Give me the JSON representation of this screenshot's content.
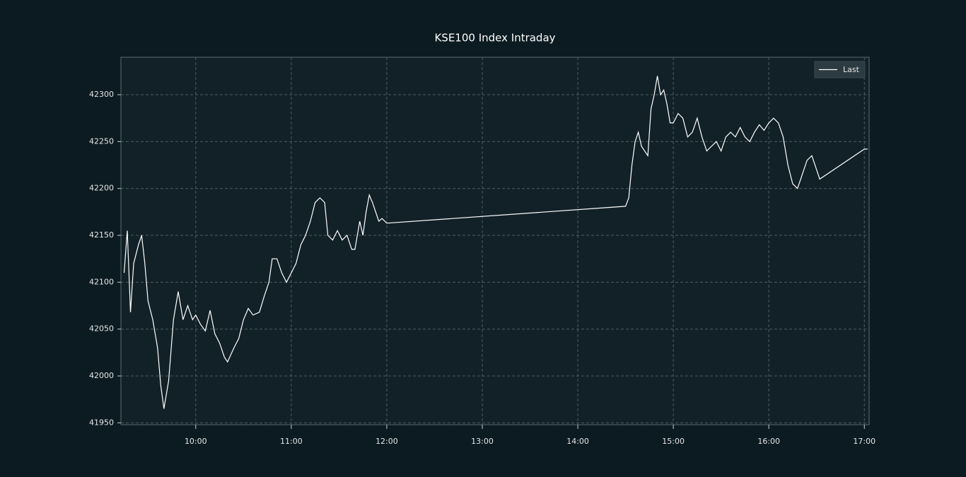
{
  "chart_data": {
    "type": "line",
    "title": "KSE100 Index Intraday",
    "x": [
      "09:15",
      "09:17",
      "09:19",
      "09:21",
      "09:24",
      "09:26",
      "09:28",
      "09:30",
      "09:33",
      "09:36",
      "09:38",
      "09:40",
      "09:43",
      "09:46",
      "09:49",
      "09:52",
      "09:55",
      "09:58",
      "10:00",
      "10:03",
      "10:06",
      "10:09",
      "10:12",
      "10:15",
      "10:18",
      "10:20",
      "10:24",
      "10:27",
      "10:30",
      "10:33",
      "10:36",
      "10:40",
      "10:43",
      "10:46",
      "10:48",
      "10:51",
      "10:54",
      "10:57",
      "11:00",
      "11:03",
      "11:06",
      "11:09",
      "11:12",
      "11:15",
      "11:18",
      "11:21",
      "11:23",
      "11:26",
      "11:29",
      "11:32",
      "11:35",
      "11:38",
      "11:40",
      "11:43",
      "11:45",
      "11:47",
      "11:49",
      "11:51",
      "11:53",
      "11:55",
      "11:57",
      "12:00",
      "14:30",
      "14:32",
      "14:34",
      "14:36",
      "14:38",
      "14:40",
      "14:42",
      "14:44",
      "14:46",
      "14:48",
      "14:50",
      "14:52",
      "14:54",
      "14:56",
      "14:58",
      "15:00",
      "15:03",
      "15:06",
      "15:09",
      "15:12",
      "15:15",
      "15:18",
      "15:21",
      "15:24",
      "15:27",
      "15:30",
      "15:33",
      "15:36",
      "15:39",
      "15:42",
      "15:45",
      "15:48",
      "15:51",
      "15:54",
      "15:57",
      "16:00",
      "16:03",
      "16:06",
      "16:09",
      "16:12",
      "16:15",
      "16:18",
      "16:21",
      "16:24",
      "16:27",
      "16:32",
      "17:00",
      "17:02"
    ],
    "series": [
      {
        "name": "Last",
        "color": "#ffffff",
        "values": [
          42110,
          42155,
          42068,
          42120,
          42140,
          42150,
          42120,
          42080,
          42060,
          42030,
          41990,
          41965,
          41995,
          42060,
          42090,
          42060,
          42075,
          42060,
          42065,
          42055,
          42048,
          42070,
          42045,
          42035,
          42020,
          42015,
          42030,
          42040,
          42060,
          42072,
          42065,
          42068,
          42085,
          42100,
          42125,
          42125,
          42110,
          42100,
          42110,
          42120,
          42140,
          42150,
          42165,
          42185,
          42190,
          42185,
          42150,
          42145,
          42155,
          42145,
          42150,
          42135,
          42135,
          42165,
          42150,
          42175,
          42193,
          42185,
          42175,
          42165,
          42168,
          42163,
          42181,
          42190,
          42225,
          42250,
          42260,
          42245,
          42240,
          42235,
          42285,
          42300,
          42320,
          42300,
          42305,
          42290,
          42270,
          42270,
          42280,
          42275,
          42255,
          42260,
          42275,
          42255,
          42240,
          42245,
          42250,
          42240,
          42255,
          42260,
          42255,
          42265,
          42255,
          42250,
          42260,
          42268,
          42262,
          42270,
          42275,
          42270,
          42255,
          42225,
          42205,
          42200,
          42215,
          42230,
          42235,
          42210,
          42242,
          42242
        ]
      }
    ],
    "xlim": [
      "09:13",
      "17:03"
    ],
    "xticks": [
      "10:00",
      "11:00",
      "12:00",
      "13:00",
      "14:00",
      "15:00",
      "16:00",
      "17:00"
    ],
    "ylim": [
      41948,
      42340
    ],
    "yticks": [
      41950,
      42000,
      42050,
      42100,
      42150,
      42200,
      42250,
      42300
    ],
    "grid": true,
    "legend": "upper right"
  }
}
